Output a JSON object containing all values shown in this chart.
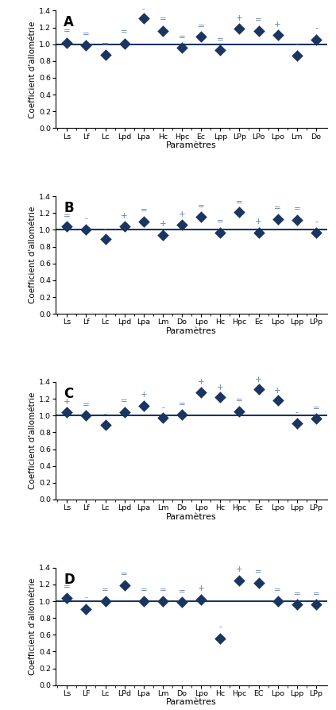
{
  "panels": [
    {
      "label": "A",
      "categories": [
        "Ls",
        "Lf",
        "Lc",
        "Lpd",
        "Lpa",
        "Hc",
        "Hpc",
        "Ec",
        "Lpp",
        "LPp",
        "LPo",
        "Lpo",
        "Lm",
        "Do"
      ],
      "values": [
        1.02,
        0.99,
        0.87,
        1.01,
        1.31,
        1.16,
        0.96,
        1.09,
        0.93,
        1.19,
        1.16,
        1.11,
        0.86,
        1.05
      ],
      "symbols": [
        "=",
        "=",
        "=",
        "=",
        "-",
        "=",
        "=",
        "=",
        "=",
        "+",
        "=",
        "+",
        "-",
        "-"
      ],
      "sym_offsets": [
        0.09,
        0.08,
        0.08,
        0.09,
        0.06,
        0.09,
        0.07,
        0.08,
        0.08,
        0.07,
        0.08,
        0.08,
        0.09,
        0.1
      ]
    },
    {
      "label": "B",
      "categories": [
        "Ls",
        "Lf",
        "Lc",
        "Lpd",
        "Lpa",
        "Lm",
        "Do",
        "Lpo",
        "Hc",
        "Hpc",
        "Ec",
        "Lpo",
        "Lpp",
        "LPp"
      ],
      "values": [
        1.04,
        1.0,
        0.89,
        1.04,
        1.1,
        0.94,
        1.06,
        1.16,
        0.97,
        1.21,
        0.97,
        1.13,
        1.12,
        0.97
      ],
      "symbols": [
        "=",
        "-",
        "-",
        "+",
        "=",
        "+",
        "+",
        "=",
        "=",
        "=",
        "+",
        "=",
        "=",
        "-"
      ],
      "sym_offsets": [
        0.08,
        0.09,
        0.08,
        0.08,
        0.08,
        0.08,
        0.08,
        0.07,
        0.08,
        0.07,
        0.08,
        0.08,
        0.08,
        0.08
      ]
    },
    {
      "label": "C",
      "categories": [
        "Ls",
        "Lf",
        "Lc",
        "Lpd",
        "Lpa",
        "Lm",
        "Do",
        "Lpo",
        "Hc",
        "Hpc",
        "Ec",
        "Lpo",
        "Lpp",
        "LPp"
      ],
      "values": [
        1.04,
        1.0,
        0.89,
        1.04,
        1.12,
        0.97,
        1.01,
        1.28,
        1.22,
        1.05,
        1.31,
        1.18,
        0.91,
        0.96
      ],
      "symbols": [
        "+",
        "=",
        "-",
        "=",
        "+",
        "-",
        "=",
        "+",
        "+",
        "=",
        "+",
        "+",
        "-",
        "="
      ],
      "sym_offsets": [
        0.08,
        0.08,
        0.08,
        0.08,
        0.08,
        0.08,
        0.08,
        0.07,
        0.07,
        0.08,
        0.07,
        0.07,
        0.08,
        0.08
      ]
    },
    {
      "label": "D",
      "categories": [
        "Ls",
        "LF",
        "Lc",
        "LPd",
        "Lpa",
        "Lm",
        "Do",
        "Lpo",
        "Hc",
        "Hpc",
        "EC",
        "Lpo",
        "Lpp",
        "LPp"
      ],
      "values": [
        1.04,
        0.91,
        1.0,
        1.19,
        1.0,
        1.0,
        0.99,
        1.02,
        0.56,
        1.25,
        1.22,
        1.0,
        0.96,
        0.96
      ],
      "symbols": [
        "=",
        "-",
        "=",
        "=",
        "=",
        "=",
        "=",
        "+",
        "-",
        "+",
        "=",
        "=",
        "=",
        "="
      ],
      "sym_offsets": [
        0.08,
        0.09,
        0.08,
        0.08,
        0.08,
        0.08,
        0.08,
        0.08,
        0.09,
        0.08,
        0.08,
        0.08,
        0.08,
        0.08
      ]
    }
  ],
  "diamond_color": "#1a3560",
  "line_color": "#1a3560",
  "symbol_color": "#6080aa",
  "ylabel": "Coefficient d'allométrie",
  "xlabel": "Paramètres",
  "ylim": [
    0,
    1.4
  ],
  "yticks": [
    0,
    0.2,
    0.4,
    0.6,
    0.8,
    1.0,
    1.2,
    1.4
  ],
  "diamond_size": 55,
  "tick_fontsize": 6.8,
  "sym_fontsize": 7.5,
  "ylabel_fontsize": 7.5,
  "xlabel_fontsize": 8,
  "panel_label_fontsize": 12
}
